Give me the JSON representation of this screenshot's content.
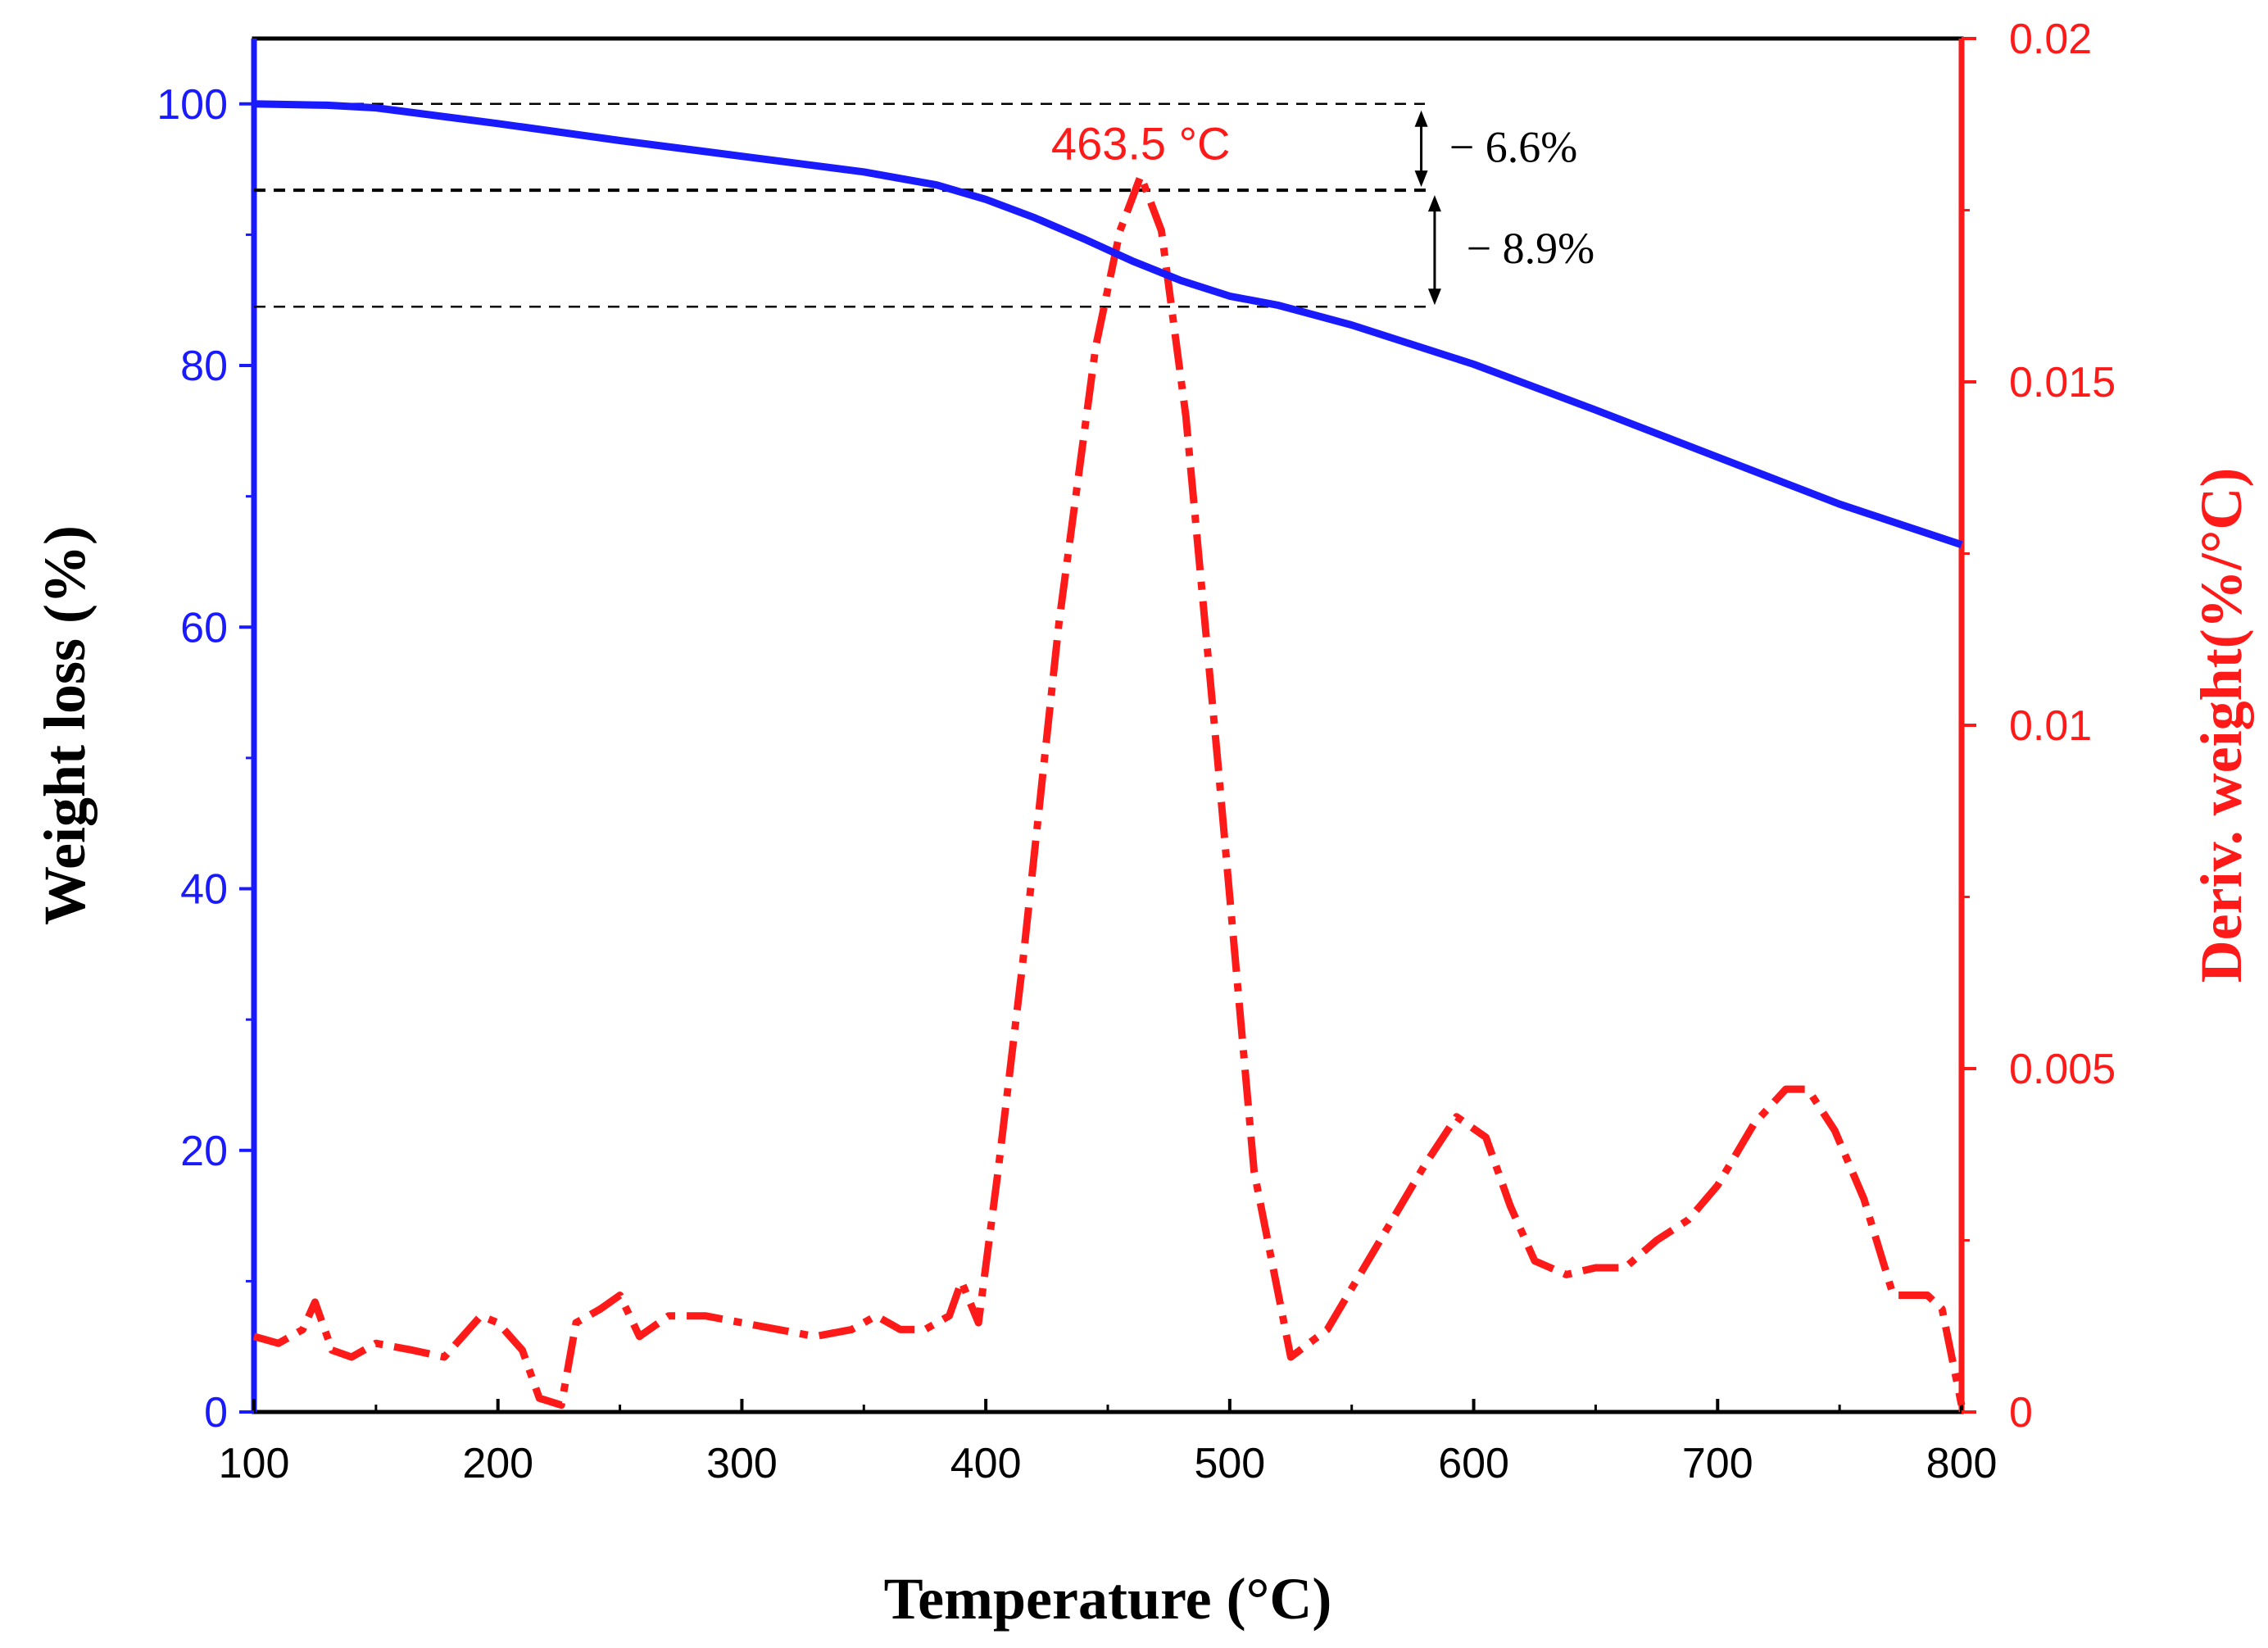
{
  "chart_data": {
    "type": "line",
    "title": "",
    "xlabel": "Temperature (°C)",
    "ylabel_left": "Weight loss (%)",
    "ylabel_right": "Deriv. weight(%/°C)",
    "xlim": [
      100,
      800
    ],
    "ylim_left": [
      0,
      105
    ],
    "ylim_right": [
      0,
      0.02
    ],
    "x_ticks": [
      "100",
      "200",
      "300",
      "400",
      "500",
      "600",
      "700",
      "800"
    ],
    "y_left_ticks": [
      "0",
      "20",
      "40",
      "60",
      "80",
      "100"
    ],
    "y_right_ticks": [
      "0",
      "0.005",
      "0.01",
      "0.015",
      "0.02"
    ],
    "grid": false,
    "series": [
      {
        "name": "Weight loss",
        "axis": "left",
        "color": "#1a1aff",
        "style": "solid",
        "x": [
          100,
          130,
          150,
          200,
          250,
          300,
          350,
          380,
          400,
          420,
          440,
          460,
          480,
          500,
          520,
          550,
          600,
          650,
          700,
          750,
          800
        ],
        "y": [
          100,
          99.9,
          99.7,
          98.5,
          97.2,
          96.0,
          94.8,
          93.8,
          92.7,
          91.3,
          89.7,
          88.0,
          86.5,
          85.3,
          84.6,
          83.1,
          80.1,
          76.6,
          73.0,
          69.4,
          66.3
        ]
      },
      {
        "name": "Deriv. weight",
        "axis": "right",
        "color": "#ff1a1a",
        "style": "dash-dot",
        "x": [
          100,
          110,
          120,
          125,
          132,
          140,
          150,
          165,
          178,
          193,
          200,
          210,
          217,
          226,
          232,
          242,
          250,
          258,
          270,
          285,
          300,
          315,
          330,
          345,
          355,
          365,
          375,
          385,
          390,
          397,
          405,
          415,
          430,
          445,
          455,
          463.5,
          472,
          482,
          495,
          510,
          525,
          540,
          560,
          580,
          593,
          605,
          615,
          625,
          638,
          650,
          662,
          675,
          688,
          700,
          715,
          728,
          737,
          748,
          760,
          772,
          786,
          792,
          800
        ],
        "y": [
          0.0011,
          0.001,
          0.0012,
          0.0016,
          0.0009,
          0.0008,
          0.001,
          0.0009,
          0.0008,
          0.0014,
          0.0013,
          0.0009,
          0.0002,
          0.0001,
          0.0013,
          0.0015,
          0.0017,
          0.0011,
          0.0014,
          0.0014,
          0.0013,
          0.0012,
          0.0011,
          0.0012,
          0.0014,
          0.0012,
          0.0012,
          0.0014,
          0.0019,
          0.0013,
          0.0035,
          0.0065,
          0.0115,
          0.0155,
          0.0172,
          0.018,
          0.0172,
          0.0145,
          0.0095,
          0.0035,
          0.0008,
          0.0012,
          0.0024,
          0.0036,
          0.0043,
          0.004,
          0.003,
          0.0022,
          0.002,
          0.0021,
          0.0021,
          0.0025,
          0.0028,
          0.0033,
          0.0042,
          0.0047,
          0.0047,
          0.0041,
          0.0031,
          0.0017,
          0.0017,
          0.0015,
          0.0001
        ]
      }
    ],
    "annotations": {
      "peak_label": "463.5 °C",
      "peak_x": 463.5,
      "peak_y": 0.018,
      "step1_label": "− 6.6%",
      "step2_label": "− 8.9%",
      "level_start": 100,
      "level_mid": 93.4,
      "level_end": 84.5
    }
  }
}
